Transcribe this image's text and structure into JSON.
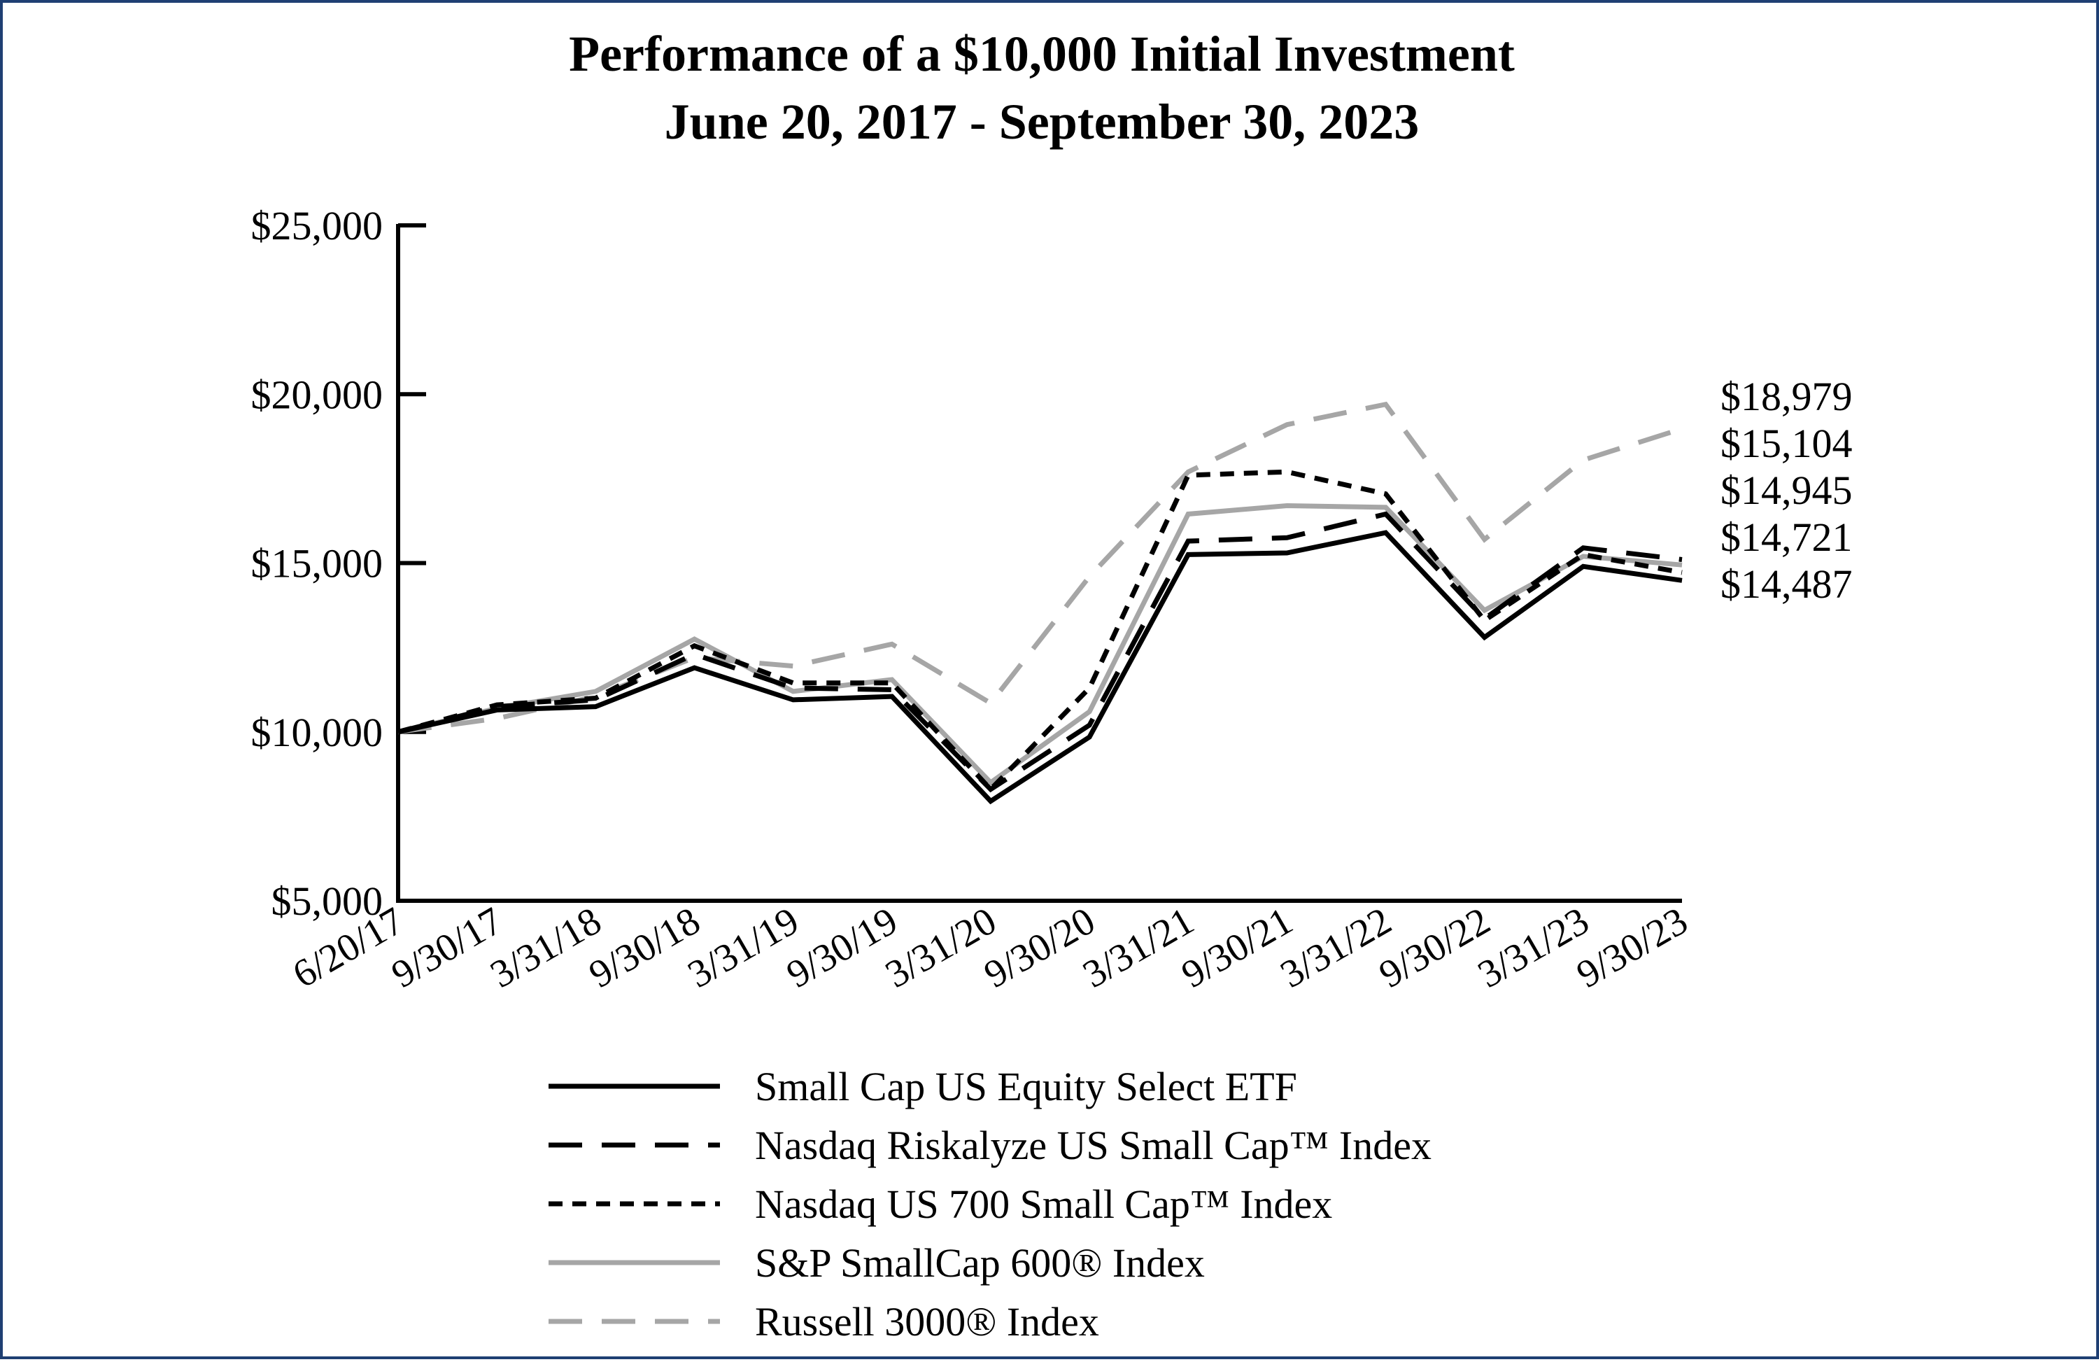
{
  "chart_data": {
    "type": "line",
    "title": "Performance of a $10,000 Initial Investment",
    "subtitle": "June 20, 2017 - September 30, 2023",
    "x": [
      "6/20/17",
      "9/30/17",
      "3/31/18",
      "9/30/18",
      "3/31/19",
      "9/30/19",
      "3/31/20",
      "9/30/20",
      "3/31/21",
      "9/30/21",
      "3/31/22",
      "9/30/22",
      "3/31/23",
      "9/30/23"
    ],
    "ylim": [
      5000,
      25000
    ],
    "yticks": [
      {
        "value": 5000,
        "label": "$5,000"
      },
      {
        "value": 10000,
        "label": "$10,000"
      },
      {
        "value": 15000,
        "label": "$15,000"
      },
      {
        "value": 20000,
        "label": "$20,000"
      },
      {
        "value": 25000,
        "label": "$25,000"
      }
    ],
    "series": [
      {
        "name": "Small Cap US Equity Select ETF",
        "color": "#000000",
        "style": "solid",
        "values": [
          10000,
          10650,
          10750,
          11900,
          10950,
          11050,
          7950,
          9850,
          15250,
          15300,
          15900,
          12800,
          14900,
          14487
        ]
      },
      {
        "name": "Nasdaq Riskalyze US Small Cap™ Index",
        "color": "#000000",
        "style": "long-dash",
        "values": [
          10000,
          10750,
          10950,
          12300,
          11300,
          11250,
          8300,
          10200,
          15650,
          15750,
          16450,
          13350,
          15450,
          15104
        ]
      },
      {
        "name": "Nasdaq US 700 Small Cap™ Index",
        "color": "#000000",
        "style": "short-dash",
        "values": [
          10000,
          10800,
          11000,
          12550,
          11450,
          11450,
          8300,
          11300,
          17600,
          17700,
          17050,
          13300,
          15250,
          14721
        ]
      },
      {
        "name": "S&P SmallCap 600® Index",
        "color": "#a6a6a6",
        "style": "solid",
        "values": [
          10000,
          10700,
          11200,
          12750,
          11200,
          11550,
          8500,
          10600,
          16450,
          16700,
          16650,
          13600,
          15200,
          14945
        ]
      },
      {
        "name": "Russell 3000® Index",
        "color": "#a6a6a6",
        "style": "long-dash",
        "values": [
          10000,
          10400,
          11050,
          12200,
          11950,
          12600,
          10850,
          14600,
          17700,
          19100,
          19700,
          15700,
          18050,
          18979
        ]
      }
    ],
    "end_labels": [
      "$18,979",
      "$15,104",
      "$14,945",
      "$14,721",
      "$14,487"
    ],
    "grid": false,
    "legend_position": "bottom"
  }
}
